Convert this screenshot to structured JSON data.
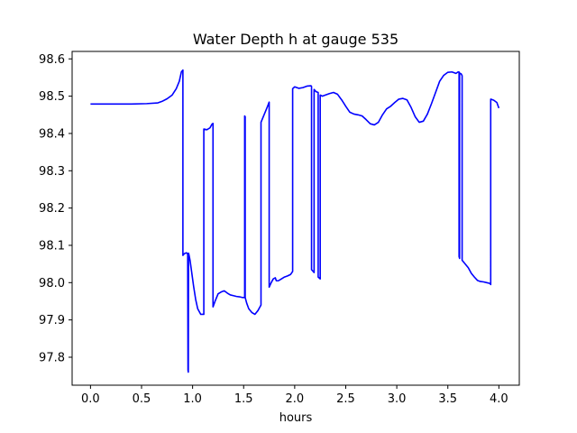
{
  "chart_data": {
    "type": "line",
    "title": "Water Depth h at gauge 535",
    "xlabel": "hours",
    "ylabel": "",
    "xlim": [
      -0.18,
      4.2
    ],
    "ylim": [
      97.725,
      98.62
    ],
    "xticks": [
      0.0,
      0.5,
      1.0,
      1.5,
      2.0,
      2.5,
      3.0,
      3.5,
      4.0
    ],
    "xtick_labels": [
      "0.0",
      "0.5",
      "1.0",
      "1.5",
      "2.0",
      "2.5",
      "3.0",
      "3.5",
      "4.0"
    ],
    "yticks": [
      97.8,
      97.9,
      98.0,
      98.1,
      98.2,
      98.3,
      98.4,
      98.5,
      98.6
    ],
    "ytick_labels": [
      "97.8",
      "97.9",
      "98.0",
      "98.1",
      "98.2",
      "98.3",
      "98.4",
      "98.5",
      "98.6"
    ],
    "grid": false,
    "legend": "none",
    "series": [
      {
        "color": "#0000ff",
        "x": [
          0.0,
          0.2,
          0.4,
          0.55,
          0.66,
          0.7,
          0.75,
          0.8,
          0.84,
          0.87,
          0.89,
          0.905,
          0.905,
          0.92,
          0.94,
          0.952,
          0.955,
          0.958,
          0.96,
          0.962,
          0.965,
          0.975,
          0.99,
          1.01,
          1.03,
          1.05,
          1.08,
          1.11,
          1.11,
          1.14,
          1.17,
          1.19,
          1.2,
          1.2,
          1.22,
          1.25,
          1.28,
          1.31,
          1.34,
          1.37,
          1.4,
          1.43,
          1.46,
          1.49,
          1.51,
          1.51,
          1.515,
          1.515,
          1.53,
          1.55,
          1.58,
          1.61,
          1.64,
          1.67,
          1.67,
          1.7,
          1.73,
          1.75,
          1.75,
          1.77,
          1.79,
          1.81,
          1.82,
          1.84,
          1.87,
          1.9,
          1.93,
          1.96,
          1.98,
          1.98,
          2.0,
          2.04,
          2.08,
          2.12,
          2.16,
          2.165,
          2.165,
          2.19,
          2.19,
          2.21,
          2.23,
          2.23,
          2.25,
          2.25,
          2.27,
          2.3,
          2.34,
          2.38,
          2.42,
          2.46,
          2.5,
          2.54,
          2.58,
          2.62,
          2.66,
          2.7,
          2.74,
          2.78,
          2.82,
          2.86,
          2.9,
          2.94,
          2.98,
          3.02,
          3.06,
          3.1,
          3.14,
          3.18,
          3.22,
          3.26,
          3.3,
          3.34,
          3.38,
          3.42,
          3.46,
          3.5,
          3.54,
          3.58,
          3.6,
          3.61,
          3.61,
          3.615,
          3.615,
          3.63,
          3.64,
          3.64,
          3.67,
          3.7,
          3.73,
          3.76,
          3.79,
          3.82,
          3.85,
          3.88,
          3.91,
          3.92,
          3.92,
          3.95,
          3.98,
          4.0
        ],
        "y": [
          98.479,
          98.479,
          98.479,
          98.48,
          98.482,
          98.486,
          98.493,
          98.503,
          98.52,
          98.54,
          98.565,
          98.57,
          98.073,
          98.078,
          98.08,
          98.077,
          97.765,
          97.76,
          98.079,
          98.077,
          98.074,
          98.06,
          98.03,
          97.99,
          97.955,
          97.93,
          97.915,
          97.915,
          98.412,
          98.41,
          98.415,
          98.425,
          98.427,
          97.935,
          97.95,
          97.97,
          97.975,
          97.978,
          97.972,
          97.967,
          97.965,
          97.963,
          97.962,
          97.96,
          97.96,
          98.447,
          98.445,
          97.96,
          97.945,
          97.93,
          97.92,
          97.915,
          97.925,
          97.94,
          98.43,
          98.45,
          98.47,
          98.484,
          97.988,
          98.0,
          98.01,
          98.013,
          98.005,
          98.005,
          98.01,
          98.015,
          98.018,
          98.022,
          98.03,
          98.52,
          98.525,
          98.521,
          98.523,
          98.527,
          98.528,
          98.526,
          98.035,
          98.027,
          98.518,
          98.512,
          98.51,
          98.015,
          98.01,
          98.503,
          98.5,
          98.503,
          98.507,
          98.51,
          98.505,
          98.49,
          98.473,
          98.457,
          98.452,
          98.45,
          98.447,
          98.437,
          98.426,
          98.423,
          98.43,
          98.45,
          98.466,
          98.473,
          98.483,
          98.492,
          98.494,
          98.49,
          98.47,
          98.445,
          98.43,
          98.433,
          98.452,
          98.48,
          98.51,
          98.54,
          98.556,
          98.564,
          98.565,
          98.561,
          98.565,
          98.565,
          98.07,
          98.065,
          98.562,
          98.56,
          98.555,
          98.06,
          98.05,
          98.04,
          98.025,
          98.015,
          98.006,
          98.003,
          98.002,
          98.0,
          97.998,
          97.995,
          98.492,
          98.489,
          98.483,
          98.468
        ]
      }
    ]
  }
}
